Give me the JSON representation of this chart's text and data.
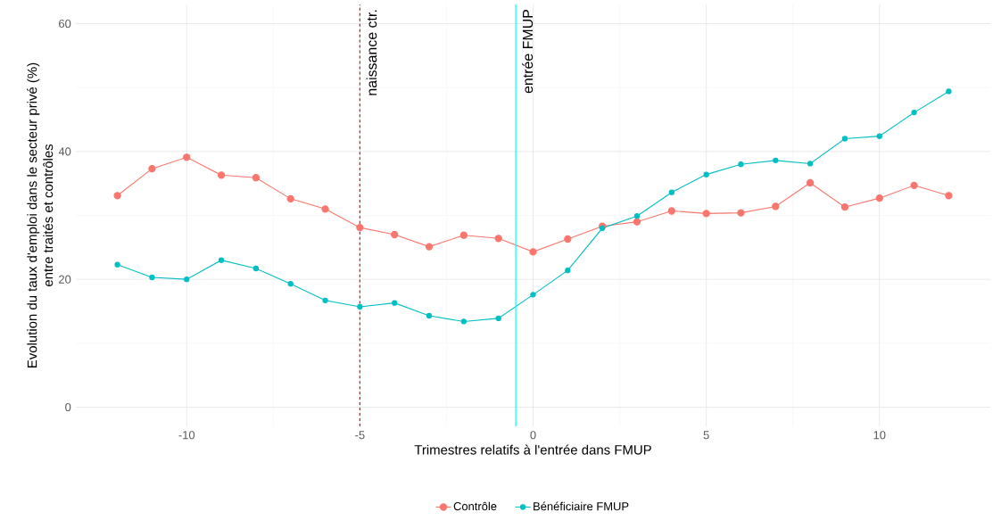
{
  "chart_data": {
    "type": "line",
    "xlabel": "Trimestres relatifs à l'entrée dans FMUP",
    "ylabel": "Evolution du taux d'emploi dans le secteur privé (%)\nentre traités et contrôles",
    "x": [
      -12,
      -11,
      -10,
      -9,
      -8,
      -7,
      -6,
      -5,
      -4,
      -3,
      -2,
      -1,
      0,
      1,
      2,
      3,
      4,
      5,
      6,
      7,
      8,
      9,
      10,
      11,
      12
    ],
    "series": [
      {
        "name": "Contrôle",
        "color": "#f8766d",
        "values": [
          33.1,
          37.3,
          39.1,
          36.3,
          35.9,
          32.6,
          31.0,
          28.1,
          27.0,
          25.1,
          26.9,
          26.4,
          24.3,
          26.3,
          28.3,
          29.0,
          30.7,
          30.3,
          30.4,
          31.4,
          35.1,
          31.3,
          32.7,
          34.7,
          33.1
        ]
      },
      {
        "name": "Bénéficiaire FMUP",
        "color": "#00bfc4",
        "values": [
          22.3,
          20.3,
          20.0,
          23.0,
          21.7,
          19.3,
          16.7,
          15.7,
          16.3,
          14.3,
          13.4,
          13.9,
          17.6,
          21.4,
          28.0,
          29.9,
          33.6,
          36.4,
          38.0,
          38.6,
          38.1,
          42.0,
          42.4,
          46.1,
          49.4
        ]
      }
    ],
    "xlim": [
      -13.2,
      13.2
    ],
    "ylim": [
      -3,
      63
    ],
    "xticks": [
      -10,
      -5,
      0,
      5,
      10
    ],
    "yticks": [
      0,
      20,
      40,
      60
    ],
    "ref_lines": [
      {
        "axis": "x",
        "value": -5,
        "label": "naissance ctr.",
        "color": "#ff0000",
        "line_style": "dashed"
      },
      {
        "axis": "x",
        "value": -0.5,
        "label": "entrée FMUP",
        "color": "#00ffff",
        "line_style": "solid"
      }
    ],
    "grid": true,
    "legend": "bottom",
    "marker": "circle",
    "line_style": "solid"
  }
}
